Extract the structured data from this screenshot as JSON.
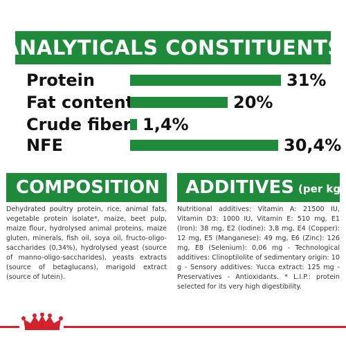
{
  "analytics": {
    "title": "ANALYTICALS CONSTITUENTS",
    "items": [
      {
        "label": "Protein",
        "value_text": "31%",
        "value": 31
      },
      {
        "label": "Fat content",
        "value_text": "20%",
        "value": 20
      },
      {
        "label": "Crude fiber",
        "value_text": "1,4%",
        "value": 1.4
      },
      {
        "label": "NFE",
        "value_text": "30,4%",
        "value": 30.4
      }
    ]
  },
  "composition": {
    "title": "COMPOSITION",
    "text": "Dehydrated poultry protein, rice, animal fats, vegetable protein isolate*, maize, beet pulp, maize flour, hydrolysed animal proteins, maize gluten, minerals, fish oil, soya oil, fructo-oligo-saccharides (0,34%), hydrolysed yeast (source of manno-oligo-saccharides), yeasts extracts (source of betaglucans), marigold extract (source of lutein)."
  },
  "additives": {
    "title": "ADDITIVES",
    "subtitle": "(per kg)",
    "text": "Nutritional additives: Vitamin A: 21500 IU, Vitamin D3: 1000 IU, Vitamin E: 510 mg, E1 (Iron): 38 mg, E2 (Iodine): 3,8 mg, E4 (Copper): 12 mg, E5 (Manganese): 49 mg, E6 (Zinc): 126 mg, E8 (Selenium): 0,06 mg - Technological additives: Clinoptilolite of sedimentary origin: 10 g - Sensory additives: Yucca extract: 125 mg - Preservatives - Antioxidants. * L.I.P.: protein selected for its very high digestibility."
  },
  "colors": {
    "brand_green": "#1f8a3c",
    "brand_red": "#d2222d"
  },
  "icons": {
    "logo": "royal-crown-icon"
  }
}
